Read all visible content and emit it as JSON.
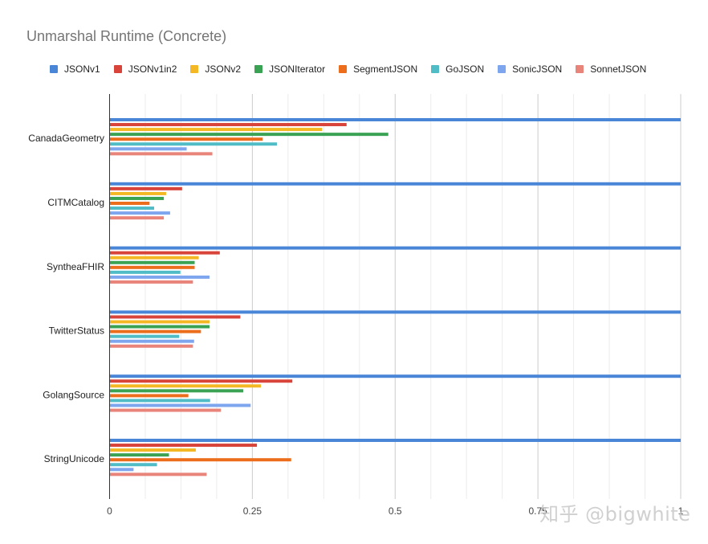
{
  "chart_data": {
    "type": "bar",
    "orientation": "horizontal",
    "title": "Unmarshal Runtime (Concrete)",
    "xlabel": "",
    "ylabel": "",
    "xlim": [
      0,
      1
    ],
    "xticks": [
      "0",
      "0.25",
      "0.5",
      "0.75",
      "1"
    ],
    "grid": true,
    "legend_position": "top",
    "categories": [
      "CanadaGeometry",
      "CITMCatalog",
      "SyntheaFHIR",
      "TwitterStatus",
      "GolangSource",
      "StringUnicode"
    ],
    "series": [
      {
        "name": "JSONv1",
        "color": "#4a86d8",
        "values": [
          1.0,
          1.0,
          1.0,
          1.0,
          1.0,
          1.0
        ]
      },
      {
        "name": "JSONv1in2",
        "color": "#d9443a",
        "values": [
          0.415,
          0.127,
          0.193,
          0.229,
          0.32,
          0.258
        ]
      },
      {
        "name": "JSONv2",
        "color": "#f3b823",
        "values": [
          0.372,
          0.099,
          0.156,
          0.175,
          0.265,
          0.151
        ]
      },
      {
        "name": "JSONIterator",
        "color": "#3aa353",
        "values": [
          0.488,
          0.095,
          0.149,
          0.175,
          0.234,
          0.104
        ]
      },
      {
        "name": "SegmentJSON",
        "color": "#ec6e1c",
        "values": [
          0.268,
          0.07,
          0.149,
          0.16,
          0.138,
          0.318
        ]
      },
      {
        "name": "GoJSON",
        "color": "#4fbcc6",
        "values": [
          0.293,
          0.078,
          0.124,
          0.122,
          0.176,
          0.083
        ]
      },
      {
        "name": "SonicJSON",
        "color": "#7ea6ef",
        "values": [
          0.135,
          0.106,
          0.175,
          0.148,
          0.247,
          0.042
        ]
      },
      {
        "name": "SonnetJSON",
        "color": "#e8847a",
        "values": [
          0.18,
          0.095,
          0.146,
          0.146,
          0.195,
          0.17
        ]
      }
    ]
  },
  "watermark": "知乎 @bigwhite"
}
